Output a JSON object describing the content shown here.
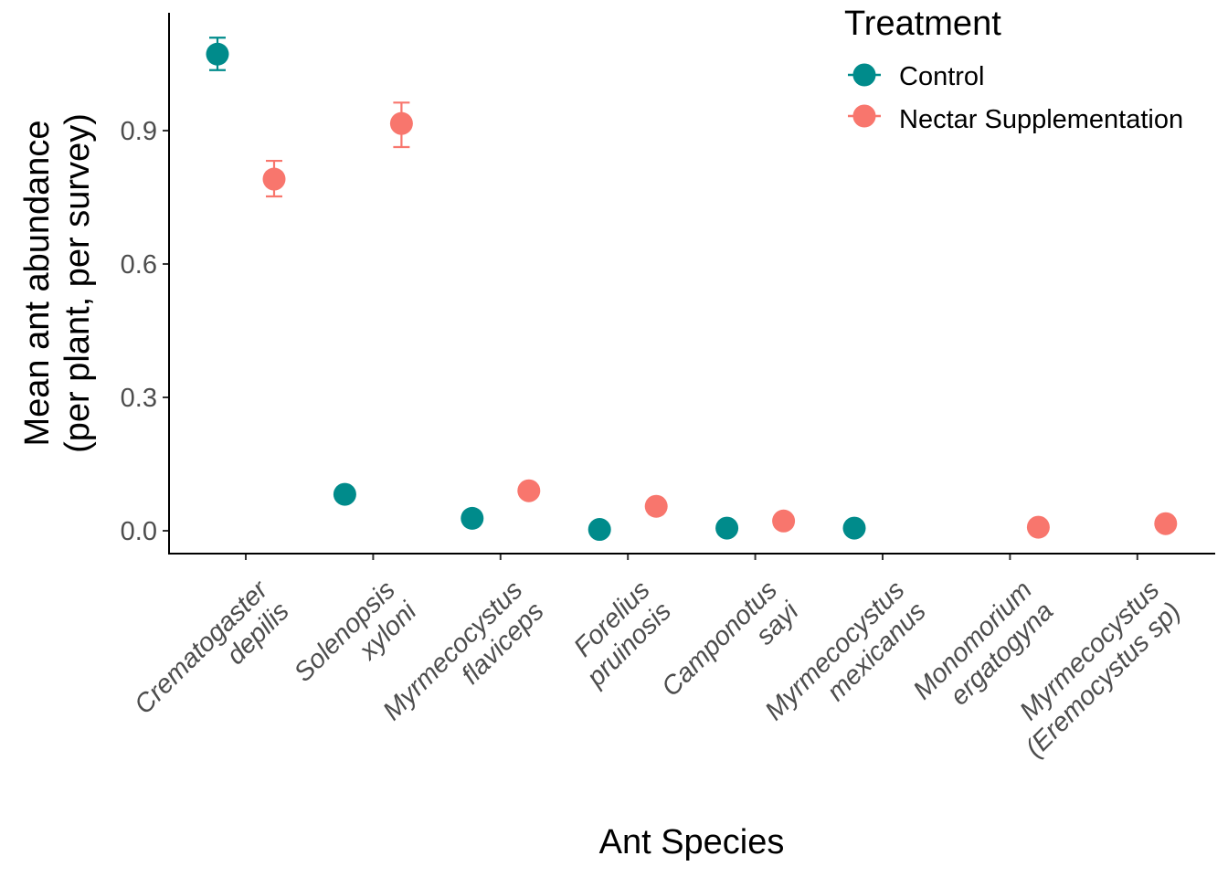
{
  "chart_data": {
    "type": "scatter",
    "title": "",
    "xlabel": "Ant Species",
    "ylabel": [
      "Mean ant abundance",
      "(per plant, per survey)"
    ],
    "ylim": [
      -0.05,
      1.165
    ],
    "yticks": [
      0.0,
      0.3,
      0.6,
      0.9
    ],
    "ytick_labels": [
      "0.0",
      "0.3",
      "0.6",
      "0.9"
    ],
    "grid": false,
    "categories": [
      [
        "Crematogaster",
        "depilis"
      ],
      [
        "Solenopsis",
        "xyloni"
      ],
      [
        "Myrmecocystus",
        "flaviceps"
      ],
      [
        "Forelius",
        "pruinosis"
      ],
      [
        "Camponotus",
        "sayi"
      ],
      [
        "Myrmecocystus",
        "mexicanus"
      ],
      [
        "Monomorium",
        "ergatogyna"
      ],
      [
        "Myrmecocystus",
        "(Eremocystus sp)"
      ]
    ],
    "legend": {
      "title": "Treatment",
      "position": "top-right"
    },
    "series": [
      {
        "name": "Control",
        "color": "#008B8B",
        "values": [
          1.072,
          0.082,
          0.028,
          0.003,
          0.006,
          0.006,
          null,
          null
        ],
        "error_low": [
          1.036,
          null,
          null,
          null,
          null,
          null,
          null,
          null
        ],
        "error_high": [
          1.109,
          null,
          null,
          null,
          null,
          null,
          null,
          null
        ]
      },
      {
        "name": "Nectar Supplementation",
        "color": "#F8766D",
        "values": [
          0.791,
          0.916,
          0.09,
          0.055,
          0.022,
          null,
          0.008,
          0.016
        ],
        "error_low": [
          0.752,
          0.863,
          null,
          null,
          null,
          null,
          null,
          null
        ],
        "error_high": [
          0.832,
          0.963,
          null,
          null,
          null,
          null,
          null,
          null
        ]
      }
    ]
  }
}
